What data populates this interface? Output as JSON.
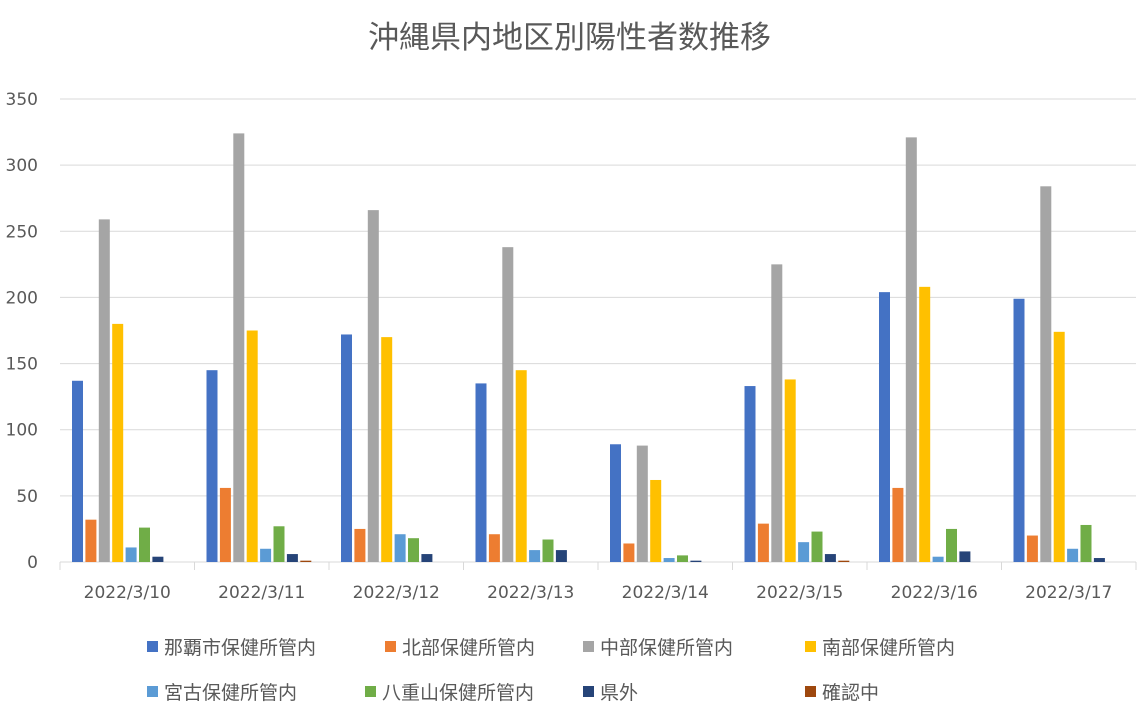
{
  "chart_data": {
    "type": "bar",
    "title": "沖縄県内地区別陽性者数推移",
    "xlabel": "",
    "ylabel": "",
    "ylim": [
      0,
      350
    ],
    "yticks": [
      0,
      50,
      100,
      150,
      200,
      250,
      300,
      350
    ],
    "grid": true,
    "legend_position": "bottom",
    "categories": [
      "2022/3/10",
      "2022/3/11",
      "2022/3/12",
      "2022/3/13",
      "2022/3/14",
      "2022/3/15",
      "2022/3/16",
      "2022/3/17"
    ],
    "series": [
      {
        "name": "那覇市保健所管内",
        "color": "#4472C4",
        "values": [
          137,
          145,
          172,
          135,
          89,
          133,
          204,
          199
        ]
      },
      {
        "name": "北部保健所管内",
        "color": "#ED7D31",
        "values": [
          32,
          56,
          25,
          21,
          14,
          29,
          56,
          20
        ]
      },
      {
        "name": "中部保健所管内",
        "color": "#A5A5A5",
        "values": [
          259,
          324,
          266,
          238,
          88,
          225,
          321,
          284
        ]
      },
      {
        "name": "南部保健所管内",
        "color": "#FFC000",
        "values": [
          180,
          175,
          170,
          145,
          62,
          138,
          208,
          174
        ]
      },
      {
        "name": "宮古保健所管内",
        "color": "#5B9BD5",
        "values": [
          11,
          10,
          21,
          9,
          3,
          15,
          4,
          10
        ]
      },
      {
        "name": "八重山保健所管内",
        "color": "#70AD47",
        "values": [
          26,
          27,
          18,
          17,
          5,
          23,
          25,
          28
        ]
      },
      {
        "name": "県外",
        "color": "#264478",
        "values": [
          4,
          6,
          6,
          9,
          1,
          6,
          8,
          3
        ]
      },
      {
        "name": "確認中",
        "color": "#9E480E",
        "values": [
          0,
          1,
          0,
          0,
          0,
          1,
          0,
          0
        ]
      }
    ]
  }
}
